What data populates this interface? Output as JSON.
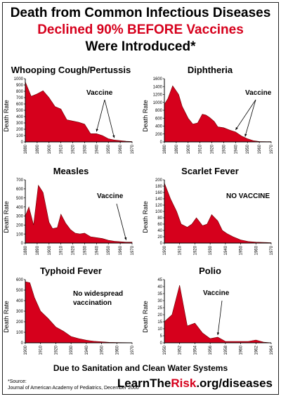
{
  "headline": {
    "line1": "Death from Common Infectious Diseases",
    "line2": "Declined 90% BEFORE Vaccines",
    "line3": "Were Introduced*"
  },
  "footer": {
    "note": "Due to Sanitation and Clean Water Systems",
    "source_label": "*Source:",
    "source_text": "Journal of American Academy of Pediatrics, December 2000",
    "brand_prefix": "LearnThe",
    "brand_highlight": "Risk",
    "brand_suffix": ".org/diseases"
  },
  "colors": {
    "area": "#d6001c",
    "red_text": "#d6001c"
  },
  "chart_data": [
    {
      "type": "area",
      "title": "Whooping Cough/Pertussis",
      "ylabel": "Death Rate",
      "xlim": [
        1880,
        1970
      ],
      "ylim": [
        0,
        1000
      ],
      "xticks": [
        1880,
        1890,
        1900,
        1910,
        1920,
        1930,
        1940,
        1950,
        1960,
        1970
      ],
      "yticks": [
        0,
        100,
        200,
        300,
        400,
        500,
        600,
        700,
        800,
        900,
        1000
      ],
      "x": [
        1880,
        1885,
        1890,
        1895,
        1900,
        1905,
        1910,
        1915,
        1920,
        1925,
        1930,
        1935,
        1940,
        1945,
        1950,
        1955,
        1960,
        1965,
        1970
      ],
      "y": [
        950,
        720,
        760,
        810,
        700,
        560,
        520,
        350,
        330,
        310,
        280,
        130,
        130,
        100,
        50,
        30,
        20,
        10,
        5
      ],
      "annotation": "Vaccine",
      "arrows_to": [
        1940,
        1955
      ]
    },
    {
      "type": "area",
      "title": "Diphtheria",
      "ylabel": "Death Rate",
      "xlim": [
        1880,
        1970
      ],
      "ylim": [
        0,
        1600
      ],
      "xticks": [
        1880,
        1890,
        1900,
        1910,
        1920,
        1930,
        1940,
        1950,
        1960,
        1970
      ],
      "yticks": [
        0,
        200,
        400,
        600,
        800,
        1000,
        1200,
        1400,
        1600
      ],
      "x": [
        1880,
        1883,
        1887,
        1892,
        1895,
        1900,
        1904,
        1908,
        1912,
        1915,
        1918,
        1922,
        1925,
        1930,
        1935,
        1940,
        1945,
        1950,
        1955,
        1960,
        1970
      ],
      "y": [
        950,
        1100,
        1420,
        1200,
        900,
        600,
        450,
        480,
        700,
        680,
        620,
        520,
        380,
        360,
        300,
        250,
        150,
        80,
        30,
        10,
        5
      ],
      "annotation": "Vaccine",
      "arrows_to": [
        1940,
        1948
      ]
    },
    {
      "type": "area",
      "title": "Measles",
      "ylabel": "Death Rate",
      "xlim": [
        1880,
        1970
      ],
      "ylim": [
        0,
        700
      ],
      "xticks": [
        1880,
        1890,
        1900,
        1910,
        1920,
        1930,
        1940,
        1950,
        1960,
        1970
      ],
      "yticks": [
        0,
        100,
        200,
        300,
        400,
        500,
        600,
        700
      ],
      "x": [
        1880,
        1883,
        1887,
        1891,
        1895,
        1900,
        1903,
        1907,
        1910,
        1914,
        1918,
        1922,
        1926,
        1930,
        1935,
        1940,
        1945,
        1950,
        1955,
        1960,
        1965,
        1970
      ],
      "y": [
        300,
        400,
        200,
        640,
        560,
        230,
        160,
        170,
        320,
        220,
        150,
        110,
        100,
        110,
        70,
        60,
        50,
        30,
        20,
        15,
        10,
        10
      ],
      "annotation": "Vaccine",
      "arrows_to": [
        1965
      ]
    },
    {
      "type": "area",
      "title": "Scarlet Fever",
      "ylabel": "Death Rate",
      "xlim": [
        1900,
        1970
      ],
      "ylim": [
        0,
        200
      ],
      "xticks": [
        1900,
        1910,
        1920,
        1930,
        1940,
        1950,
        1960,
        1970
      ],
      "yticks": [
        0,
        20,
        40,
        60,
        80,
        100,
        120,
        140,
        160,
        180,
        200
      ],
      "x": [
        1900,
        1904,
        1908,
        1911,
        1915,
        1918,
        1921,
        1925,
        1928,
        1931,
        1935,
        1938,
        1941,
        1945,
        1950,
        1955,
        1960,
        1965,
        1970
      ],
      "y": [
        190,
        140,
        100,
        60,
        50,
        60,
        80,
        55,
        60,
        90,
        70,
        40,
        30,
        20,
        10,
        5,
        3,
        2,
        1
      ],
      "annotation": "NO VACCINE",
      "arrows_to": []
    },
    {
      "type": "area",
      "title": "Typhoid Fever",
      "ylabel": "Death Rate",
      "xlim": [
        1900,
        1970
      ],
      "ylim": [
        0,
        600
      ],
      "xticks": [
        1900,
        1910,
        1920,
        1930,
        1940,
        1950,
        1960,
        1970
      ],
      "yticks": [
        0,
        100,
        200,
        300,
        400,
        500,
        600
      ],
      "x": [
        1900,
        1903,
        1906,
        1910,
        1915,
        1920,
        1925,
        1930,
        1935,
        1940,
        1945,
        1950,
        1955,
        1960,
        1965,
        1970
      ],
      "y": [
        580,
        570,
        430,
        300,
        230,
        150,
        110,
        60,
        40,
        25,
        15,
        10,
        5,
        3,
        2,
        1
      ],
      "annotation": "No widespread vaccination",
      "arrows_to": []
    },
    {
      "type": "area",
      "title": "Polio",
      "ylabel": "Death Rate",
      "xlim": [
        1950,
        1964
      ],
      "ylim": [
        0,
        45
      ],
      "xticks": [
        1950,
        1952,
        1954,
        1956,
        1958,
        1960,
        1962,
        1964
      ],
      "yticks": [
        0,
        5,
        10,
        15,
        20,
        25,
        30,
        35,
        40,
        45
      ],
      "x": [
        1950,
        1951,
        1952,
        1953,
        1954,
        1955,
        1956,
        1957,
        1958,
        1959,
        1960,
        1961,
        1962,
        1963,
        1964
      ],
      "y": [
        15,
        20,
        41,
        12,
        14,
        7,
        3,
        4,
        1,
        1,
        1,
        1,
        2,
        0.5,
        0
      ],
      "annotation": "Vaccine",
      "arrows_to": [
        1957
      ]
    }
  ]
}
